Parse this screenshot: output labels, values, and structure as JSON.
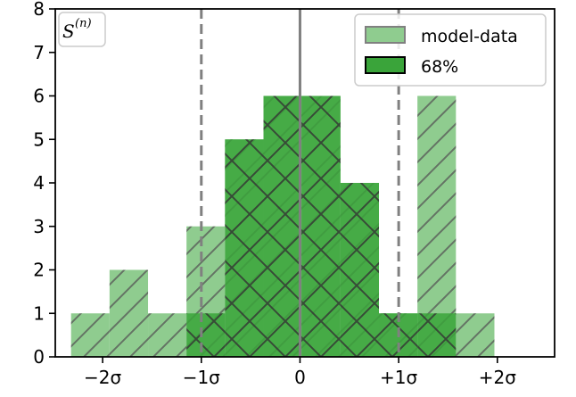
{
  "chart_data": {
    "type": "bar",
    "panel_tag": "S",
    "panel_tag_superscript": "(n)",
    "xticks": [
      {
        "value": -2,
        "label": "−2σ"
      },
      {
        "value": -1,
        "label": "−1σ"
      },
      {
        "value": 0,
        "label": "0"
      },
      {
        "value": 1,
        "label": "+1σ"
      },
      {
        "value": 2,
        "label": "+2σ"
      }
    ],
    "yticks": [
      "0",
      "1",
      "2",
      "3",
      "4",
      "5",
      "6",
      "7",
      "8"
    ],
    "xlim": [
      -2.48,
      2.58
    ],
    "ylim": [
      0,
      8
    ],
    "vlines": [
      {
        "x": -1,
        "style": "dashed"
      },
      {
        "x": 0,
        "style": "solid"
      },
      {
        "x": 1,
        "style": "dashed"
      }
    ],
    "series": [
      {
        "name": "model-data",
        "color": "#8fcc8f",
        "hatch": "forward-diagonal",
        "bins": [
          {
            "x0": -2.32,
            "x1": -1.93,
            "count": 1
          },
          {
            "x0": -1.93,
            "x1": -1.54,
            "count": 2
          },
          {
            "x0": -1.54,
            "x1": -1.15,
            "count": 1
          },
          {
            "x0": -1.15,
            "x1": -0.76,
            "count": 3
          },
          {
            "x0": -0.76,
            "x1": -0.37,
            "count": 5
          },
          {
            "x0": -0.37,
            "x1": 0.02,
            "count": 6
          },
          {
            "x0": 0.02,
            "x1": 0.41,
            "count": 6
          },
          {
            "x0": 0.41,
            "x1": 0.8,
            "count": 4
          },
          {
            "x0": 0.8,
            "x1": 1.19,
            "count": 1
          },
          {
            "x0": 1.19,
            "x1": 1.58,
            "count": 6
          },
          {
            "x0": 1.58,
            "x1": 1.97,
            "count": 1
          }
        ]
      },
      {
        "name": "68%",
        "color": "#3aa43a",
        "hatch": "cross-diagonal",
        "bins": [
          {
            "x0": -1.15,
            "x1": -0.76,
            "count": 1
          },
          {
            "x0": -0.76,
            "x1": -0.37,
            "count": 5
          },
          {
            "x0": -0.37,
            "x1": 0.02,
            "count": 6
          },
          {
            "x0": 0.02,
            "x1": 0.41,
            "count": 6
          },
          {
            "x0": 0.41,
            "x1": 0.8,
            "count": 4
          },
          {
            "x0": 0.8,
            "x1": 1.19,
            "count": 1
          },
          {
            "x0": 1.19,
            "x1": 1.58,
            "count": 1
          }
        ]
      }
    ],
    "legend_position": "top-right",
    "grid": false
  }
}
